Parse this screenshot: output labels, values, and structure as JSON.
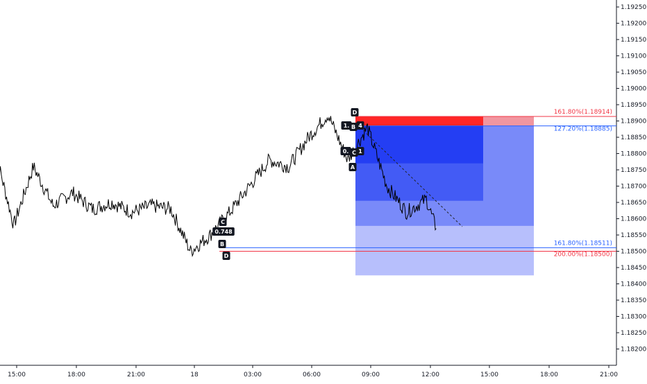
{
  "chart_data": {
    "type": "line",
    "instrument_scale": "price",
    "y_axis": {
      "position": "right",
      "ticks": [
        "1.18200",
        "1.18250",
        "1.18300",
        "1.18350",
        "1.18400",
        "1.18450",
        "1.18500",
        "1.18550",
        "1.18600",
        "1.18650",
        "1.18700",
        "1.18750",
        "1.18800",
        "1.18850",
        "1.18900",
        "1.18950",
        "1.19000",
        "1.19050",
        "1.19100",
        "1.19150",
        "1.19200",
        "1.19250"
      ],
      "ylim": [
        1.1815,
        1.19265
      ]
    },
    "x_axis": {
      "ticks": [
        "15:00",
        "18:00",
        "21:00",
        "18",
        "03:00",
        "06:00",
        "09:00",
        "12:00",
        "15:00",
        "18:00",
        "21:00"
      ]
    },
    "series": [
      {
        "color": "#000000",
        "x": [
          "15:00",
          "16:00",
          "17:00",
          "18:00",
          "19:00",
          "20:00",
          "21:00",
          "22:00",
          "23:00",
          "00:00",
          "01:00",
          "02:00",
          "03:00",
          "04:00",
          "05:00",
          "06:00",
          "07:00",
          "08:00",
          "08:30",
          "09:00",
          "10:00",
          "11:00",
          "12:00",
          "13:00",
          "13:30"
        ],
        "values": [
          1.1882,
          1.1858,
          1.1876,
          1.1864,
          1.1868,
          1.1863,
          1.1865,
          1.1862,
          1.1864,
          1.1863,
          1.185,
          1.1855,
          1.1862,
          1.187,
          1.1878,
          1.1876,
          1.1885,
          1.1892,
          1.1885,
          1.1878,
          1.1888,
          1.187,
          1.1862,
          1.1866,
          1.1857
        ]
      }
    ],
    "grid": false,
    "harmonic_patterns": [
      {
        "points": [
          "A",
          "B",
          "C",
          "D"
        ],
        "labels": [
          "C",
          "0.748",
          "B",
          "D"
        ]
      },
      {
        "points": [
          "A",
          "B",
          "C",
          "D"
        ],
        "labels": [
          "D",
          "1.",
          "B",
          "4",
          "0.",
          "C",
          "1",
          "A"
        ]
      }
    ],
    "fib_levels": [
      {
        "label": "161.80%(1.18914)",
        "price": 1.18914,
        "color": "#f23645"
      },
      {
        "label": "127.20%(1.18885)",
        "price": 1.18885,
        "color": "#2962ff"
      },
      {
        "label": "161.80%(1.18511)",
        "price": 1.18511,
        "color": "#2962ff"
      },
      {
        "label": "200.00%(1.18500)",
        "price": 1.185,
        "color": "#f23645"
      }
    ],
    "zones": {
      "stop_zone": {
        "from": 1.18885,
        "to": 1.18914,
        "color": "#ff0000"
      },
      "target_zones": [
        {
          "from": 1.18885,
          "to": 1.18426,
          "color": "#aab4fb"
        },
        {
          "from": 1.18885,
          "to": 1.18578,
          "color": "#6e80f8"
        },
        {
          "from": 1.18885,
          "to": 1.18655,
          "color": "#3a52f5"
        },
        {
          "from": 1.18885,
          "to": 1.1877,
          "color": "#1f3af2"
        }
      ]
    }
  }
}
